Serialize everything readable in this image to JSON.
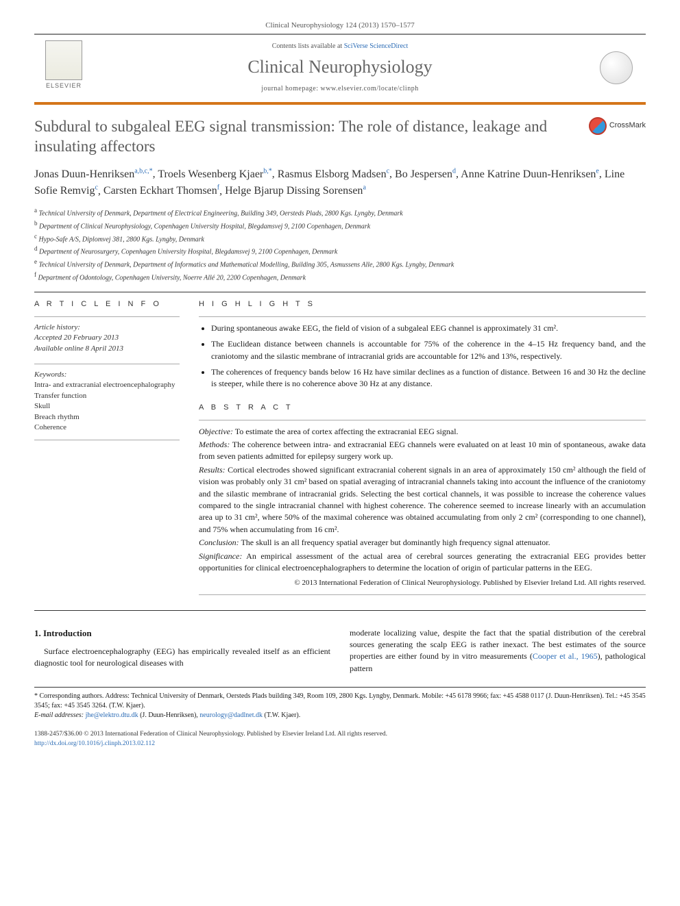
{
  "header": {
    "citation": "Clinical Neurophysiology 124 (2013) 1570–1577",
    "contents_prefix": "Contents lists available at ",
    "contents_link": "SciVerse ScienceDirect",
    "journal_name": "Clinical Neurophysiology",
    "homepage_prefix": "journal homepage: ",
    "homepage_url": "www.elsevier.com/locate/clinph",
    "publisher_label": "ELSEVIER"
  },
  "colors": {
    "accent_border": "#d4751a",
    "link": "#2a6bb5",
    "text_muted": "#5a5a5a"
  },
  "article": {
    "title": "Subdural to subgaleal EEG signal transmission: The role of distance, leakage and insulating affectors",
    "crossmark_label": "CrossMark"
  },
  "authors": [
    {
      "name": "Jonas Duun-Henriksen",
      "aff": "a,b,c,",
      "corr": "*"
    },
    {
      "name": "Troels Wesenberg Kjaer",
      "aff": "b,",
      "corr": "*"
    },
    {
      "name": "Rasmus Elsborg Madsen",
      "aff": "c",
      "corr": ""
    },
    {
      "name": "Bo Jespersen",
      "aff": "d",
      "corr": ""
    },
    {
      "name": "Anne Katrine Duun-Henriksen",
      "aff": "e",
      "corr": ""
    },
    {
      "name": "Line Sofie Remvig",
      "aff": "c",
      "corr": ""
    },
    {
      "name": "Carsten Eckhart Thomsen",
      "aff": "f",
      "corr": ""
    },
    {
      "name": "Helge Bjarup Dissing Sorensen",
      "aff": "a",
      "corr": ""
    }
  ],
  "affiliations": [
    {
      "key": "a",
      "text": "Technical University of Denmark, Department of Electrical Engineering, Building 349, Oersteds Plads, 2800 Kgs. Lyngby, Denmark"
    },
    {
      "key": "b",
      "text": "Department of Clinical Neurophysiology, Copenhagen University Hospital, Blegdamsvej 9, 2100 Copenhagen, Denmark"
    },
    {
      "key": "c",
      "text": "Hypo-Safe A/S, Diplomvej 381, 2800 Kgs. Lyngby, Denmark"
    },
    {
      "key": "d",
      "text": "Department of Neurosurgery, Copenhagen University Hospital, Blegdamsvej 9, 2100 Copenhagen, Denmark"
    },
    {
      "key": "e",
      "text": "Technical University of Denmark, Department of Informatics and Mathematical Modelling, Building 305, Asmussens Alle, 2800 Kgs. Lyngby, Denmark"
    },
    {
      "key": "f",
      "text": "Department of Odontology, Copenhagen University, Noerre Allé 20, 2200 Copenhagen, Denmark"
    }
  ],
  "article_info": {
    "heading": "A R T I C L E   I N F O",
    "history_label": "Article history:",
    "accepted": "Accepted 20 February 2013",
    "online": "Available online 8 April 2013",
    "keywords_label": "Keywords:",
    "keywords": [
      "Intra- and extracranial electroencephalography",
      "Transfer function",
      "Skull",
      "Breach rhythm",
      "Coherence"
    ]
  },
  "highlights": {
    "heading": "H I G H L I G H T S",
    "items": [
      "During spontaneous awake EEG, the field of vision of a subgaleal EEG channel is approximately 31 cm².",
      "The Euclidean distance between channels is accountable for 75% of the coherence in the 4–15 Hz frequency band, and the craniotomy and the silastic membrane of intracranial grids are accountable for 12% and 13%, respectively.",
      "The coherences of frequency bands below 16 Hz have similar declines as a function of distance. Between 16 and 30 Hz the decline is steeper, while there is no coherence above 30 Hz at any distance."
    ]
  },
  "abstract": {
    "heading": "A B S T R A C T",
    "objective_label": "Objective:",
    "objective": " To estimate the area of cortex affecting the extracranial EEG signal.",
    "methods_label": "Methods:",
    "methods": " The coherence between intra- and extracranial EEG channels were evaluated on at least 10 min of spontaneous, awake data from seven patients admitted for epilepsy surgery work up.",
    "results_label": "Results:",
    "results": " Cortical electrodes showed significant extracranial coherent signals in an area of approximately 150 cm² although the field of vision was probably only 31 cm² based on spatial averaging of intracranial channels taking into account the influence of the craniotomy and the silastic membrane of intracranial grids. Selecting the best cortical channels, it was possible to increase the coherence values compared to the single intracranial channel with highest coherence. The coherence seemed to increase linearly with an accumulation area up to 31 cm², where 50% of the maximal coherence was obtained accumulating from only 2 cm² (corresponding to one channel), and 75% when accumulating from 16 cm².",
    "conclusion_label": "Conclusion:",
    "conclusion": " The skull is an all frequency spatial averager but dominantly high frequency signal attenuator.",
    "significance_label": "Significance:",
    "significance": " An empirical assessment of the actual area of cerebral sources generating the extracranial EEG provides better opportunities for clinical electroencephalographers to determine the location of origin of particular patterns in the EEG.",
    "copyright": "© 2013 International Federation of Clinical Neurophysiology. Published by Elsevier Ireland Ltd. All rights reserved."
  },
  "intro": {
    "heading": "1. Introduction",
    "left": "Surface electroencephalography (EEG) has empirically revealed itself as an efficient diagnostic tool for neurological diseases with",
    "right_pre": "moderate localizing value, despite the fact that the spatial distribution of the cerebral sources generating the scalp EEG is rather inexact. The best estimates of the source properties are either found by in vitro measurements (",
    "right_ref": "Cooper et al., 1965",
    "right_post": "), pathological pattern"
  },
  "footnotes": {
    "corr_marker": "*",
    "corr_text": " Corresponding authors. Address: Technical University of Denmark, Oersteds Plads building 349, Room 109, 2800 Kgs. Lyngby, Denmark. Mobile: +45 6178 9966; fax: +45 4588 0117 (J. Duun-Henriksen). Tel.: +45 3545 3545; fax: +45 3545 3264. (T.W. Kjaer).",
    "email_label": "E-mail addresses: ",
    "email1": "jhe@elektro.dtu.dk",
    "email1_who": " (J. Duun-Henriksen), ",
    "email2": "neurology@dadlnet.dk",
    "email2_who": " (T.W. Kjaer)."
  },
  "bottom": {
    "issn_line": "1388-2457/$36.00 © 2013 International Federation of Clinical Neurophysiology. Published by Elsevier Ireland Ltd. All rights reserved.",
    "doi": "http://dx.doi.org/10.1016/j.clinph.2013.02.112"
  }
}
